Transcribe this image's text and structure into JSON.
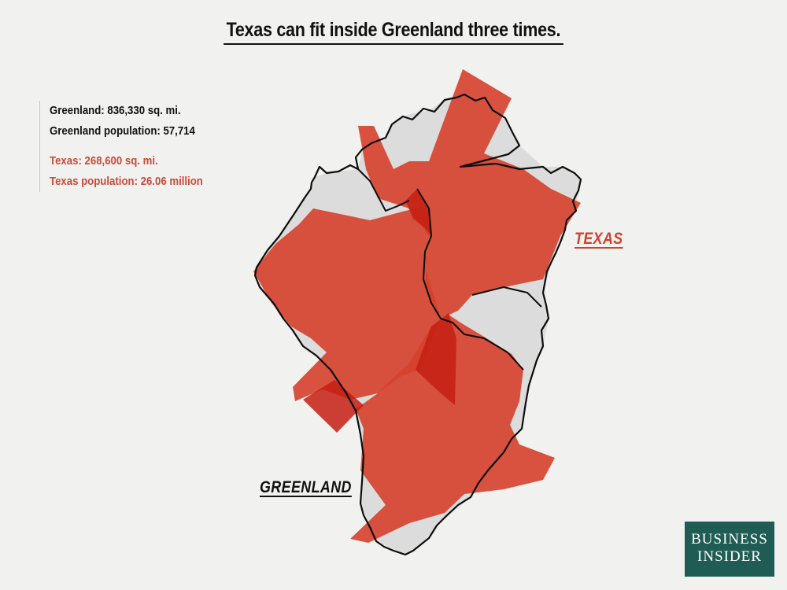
{
  "title": "Texas can fit inside Greenland three times.",
  "stats": {
    "greenland_area": "Greenland: 836,330 sq. mi.",
    "greenland_population": "Greenland population: 57,714",
    "texas_area": "Texas: 268,600 sq. mi.",
    "texas_population": "Texas population: 26.06 million"
  },
  "labels": {
    "texas": "TEXAS",
    "greenland": "GREENLAND"
  },
  "logo": {
    "line1": "BUSINESS",
    "line2": "INSIDER"
  },
  "colors": {
    "background": "#f1f1f0",
    "greenland_fill": "#dcdcdc",
    "texas_fill": "#d5402b",
    "texas_text": "#c84b38",
    "logo_bg": "#1f5d54"
  }
}
